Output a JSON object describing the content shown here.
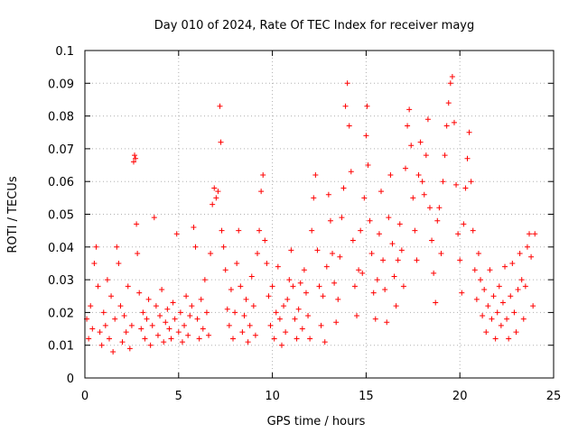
{
  "chart_data": {
    "type": "scatter",
    "title": "Day 010 of 2024, Rate Of TEC Index for receiver mayg",
    "xlabel": "GPS time / hours",
    "ylabel": "ROTI / TECUs",
    "xlim": [
      0,
      25
    ],
    "ylim": [
      0,
      0.1
    ],
    "x_ticks": [
      0,
      5,
      10,
      15,
      20,
      25
    ],
    "x_tick_labels": [
      "0",
      "5",
      "10",
      "15",
      "20",
      "25"
    ],
    "y_ticks": [
      0,
      0.01,
      0.02,
      0.03,
      0.04,
      0.05,
      0.06,
      0.07,
      0.08,
      0.09,
      0.1
    ],
    "y_tick_labels": [
      "0",
      "0.01",
      "0.02",
      "0.03",
      "0.04",
      "0.05",
      "0.06",
      "0.07",
      "0.08",
      "0.09",
      "0.1"
    ],
    "grid": true,
    "marker": "plus",
    "series": [
      {
        "name": "ROTI",
        "color": "#ff0000",
        "points": [
          [
            0.1,
            0.018
          ],
          [
            0.2,
            0.012
          ],
          [
            0.3,
            0.022
          ],
          [
            0.4,
            0.015
          ],
          [
            0.5,
            0.035
          ],
          [
            0.6,
            0.04
          ],
          [
            0.7,
            0.028
          ],
          [
            0.8,
            0.014
          ],
          [
            0.9,
            0.01
          ],
          [
            1.0,
            0.02
          ],
          [
            1.1,
            0.016
          ],
          [
            1.2,
            0.03
          ],
          [
            1.3,
            0.012
          ],
          [
            1.4,
            0.025
          ],
          [
            1.5,
            0.008
          ],
          [
            1.6,
            0.018
          ],
          [
            1.7,
            0.04
          ],
          [
            1.8,
            0.035
          ],
          [
            1.9,
            0.022
          ],
          [
            2.0,
            0.011
          ],
          [
            2.1,
            0.019
          ],
          [
            2.2,
            0.014
          ],
          [
            2.3,
            0.028
          ],
          [
            2.4,
            0.009
          ],
          [
            2.5,
            0.016
          ],
          [
            2.6,
            0.066
          ],
          [
            2.65,
            0.068
          ],
          [
            2.7,
            0.067
          ],
          [
            2.75,
            0.047
          ],
          [
            2.8,
            0.038
          ],
          [
            2.9,
            0.026
          ],
          [
            3.0,
            0.015
          ],
          [
            3.1,
            0.02
          ],
          [
            3.2,
            0.012
          ],
          [
            3.3,
            0.018
          ],
          [
            3.4,
            0.024
          ],
          [
            3.5,
            0.01
          ],
          [
            3.6,
            0.016
          ],
          [
            3.7,
            0.049
          ],
          [
            3.8,
            0.022
          ],
          [
            3.9,
            0.013
          ],
          [
            4.0,
            0.019
          ],
          [
            4.1,
            0.027
          ],
          [
            4.2,
            0.011
          ],
          [
            4.3,
            0.017
          ],
          [
            4.4,
            0.021
          ],
          [
            4.5,
            0.015
          ],
          [
            4.6,
            0.012
          ],
          [
            4.7,
            0.023
          ],
          [
            4.8,
            0.018
          ],
          [
            4.9,
            0.044
          ],
          [
            5.0,
            0.014
          ],
          [
            5.1,
            0.02
          ],
          [
            5.2,
            0.011
          ],
          [
            5.3,
            0.016
          ],
          [
            5.4,
            0.025
          ],
          [
            5.5,
            0.013
          ],
          [
            5.6,
            0.019
          ],
          [
            5.7,
            0.022
          ],
          [
            5.8,
            0.046
          ],
          [
            5.9,
            0.04
          ],
          [
            6.0,
            0.018
          ],
          [
            6.1,
            0.012
          ],
          [
            6.2,
            0.024
          ],
          [
            6.3,
            0.015
          ],
          [
            6.4,
            0.03
          ],
          [
            6.5,
            0.02
          ],
          [
            6.6,
            0.013
          ],
          [
            6.7,
            0.038
          ],
          [
            6.8,
            0.053
          ],
          [
            6.9,
            0.058
          ],
          [
            7.0,
            0.055
          ],
          [
            7.1,
            0.057
          ],
          [
            7.2,
            0.083
          ],
          [
            7.25,
            0.072
          ],
          [
            7.3,
            0.045
          ],
          [
            7.4,
            0.04
          ],
          [
            7.5,
            0.033
          ],
          [
            7.6,
            0.021
          ],
          [
            7.7,
            0.016
          ],
          [
            7.8,
            0.027
          ],
          [
            7.9,
            0.012
          ],
          [
            8.0,
            0.02
          ],
          [
            8.1,
            0.035
          ],
          [
            8.2,
            0.045
          ],
          [
            8.3,
            0.028
          ],
          [
            8.4,
            0.014
          ],
          [
            8.5,
            0.019
          ],
          [
            8.6,
            0.024
          ],
          [
            8.7,
            0.011
          ],
          [
            8.8,
            0.016
          ],
          [
            8.9,
            0.031
          ],
          [
            9.0,
            0.022
          ],
          [
            9.1,
            0.013
          ],
          [
            9.2,
            0.038
          ],
          [
            9.3,
            0.045
          ],
          [
            9.4,
            0.057
          ],
          [
            9.5,
            0.062
          ],
          [
            9.6,
            0.042
          ],
          [
            9.7,
            0.035
          ],
          [
            9.8,
            0.025
          ],
          [
            9.9,
            0.016
          ],
          [
            10.0,
            0.028
          ],
          [
            10.1,
            0.012
          ],
          [
            10.2,
            0.02
          ],
          [
            10.3,
            0.034
          ],
          [
            10.4,
            0.018
          ],
          [
            10.5,
            0.01
          ],
          [
            10.6,
            0.022
          ],
          [
            10.7,
            0.014
          ],
          [
            10.8,
            0.024
          ],
          [
            10.9,
            0.03
          ],
          [
            11.0,
            0.039
          ],
          [
            11.1,
            0.028
          ],
          [
            11.2,
            0.018
          ],
          [
            11.3,
            0.012
          ],
          [
            11.4,
            0.021
          ],
          [
            11.5,
            0.029
          ],
          [
            11.6,
            0.015
          ],
          [
            11.7,
            0.033
          ],
          [
            11.8,
            0.026
          ],
          [
            11.9,
            0.019
          ],
          [
            12.0,
            0.012
          ],
          [
            12.1,
            0.045
          ],
          [
            12.2,
            0.055
          ],
          [
            12.3,
            0.062
          ],
          [
            12.4,
            0.039
          ],
          [
            12.5,
            0.028
          ],
          [
            12.6,
            0.016
          ],
          [
            12.7,
            0.025
          ],
          [
            12.8,
            0.011
          ],
          [
            12.9,
            0.034
          ],
          [
            13.0,
            0.056
          ],
          [
            13.1,
            0.048
          ],
          [
            13.2,
            0.038
          ],
          [
            13.3,
            0.029
          ],
          [
            13.4,
            0.017
          ],
          [
            13.5,
            0.024
          ],
          [
            13.6,
            0.037
          ],
          [
            13.7,
            0.049
          ],
          [
            13.8,
            0.058
          ],
          [
            13.9,
            0.083
          ],
          [
            14.0,
            0.09
          ],
          [
            14.1,
            0.077
          ],
          [
            14.2,
            0.063
          ],
          [
            14.3,
            0.042
          ],
          [
            14.4,
            0.028
          ],
          [
            14.5,
            0.019
          ],
          [
            14.6,
            0.033
          ],
          [
            14.7,
            0.045
          ],
          [
            14.8,
            0.032
          ],
          [
            14.9,
            0.055
          ],
          [
            15.0,
            0.074
          ],
          [
            15.05,
            0.083
          ],
          [
            15.1,
            0.065
          ],
          [
            15.2,
            0.048
          ],
          [
            15.3,
            0.038
          ],
          [
            15.4,
            0.026
          ],
          [
            15.5,
            0.018
          ],
          [
            15.6,
            0.03
          ],
          [
            15.7,
            0.044
          ],
          [
            15.8,
            0.057
          ],
          [
            15.9,
            0.036
          ],
          [
            16.0,
            0.027
          ],
          [
            16.1,
            0.017
          ],
          [
            16.2,
            0.049
          ],
          [
            16.3,
            0.062
          ],
          [
            16.4,
            0.041
          ],
          [
            16.5,
            0.031
          ],
          [
            16.6,
            0.022
          ],
          [
            16.7,
            0.036
          ],
          [
            16.8,
            0.047
          ],
          [
            16.9,
            0.039
          ],
          [
            17.0,
            0.028
          ],
          [
            17.1,
            0.064
          ],
          [
            17.2,
            0.077
          ],
          [
            17.3,
            0.082
          ],
          [
            17.4,
            0.071
          ],
          [
            17.5,
            0.055
          ],
          [
            17.6,
            0.045
          ],
          [
            17.7,
            0.036
          ],
          [
            17.8,
            0.062
          ],
          [
            17.9,
            0.072
          ],
          [
            18.0,
            0.06
          ],
          [
            18.1,
            0.056
          ],
          [
            18.2,
            0.068
          ],
          [
            18.3,
            0.079
          ],
          [
            18.4,
            0.052
          ],
          [
            18.5,
            0.042
          ],
          [
            18.6,
            0.032
          ],
          [
            18.7,
            0.023
          ],
          [
            18.8,
            0.048
          ],
          [
            18.9,
            0.052
          ],
          [
            19.0,
            0.038
          ],
          [
            19.1,
            0.06
          ],
          [
            19.2,
            0.068
          ],
          [
            19.3,
            0.077
          ],
          [
            19.4,
            0.084
          ],
          [
            19.5,
            0.09
          ],
          [
            19.6,
            0.092
          ],
          [
            19.7,
            0.078
          ],
          [
            19.8,
            0.059
          ],
          [
            19.9,
            0.044
          ],
          [
            20.0,
            0.036
          ],
          [
            20.1,
            0.026
          ],
          [
            20.2,
            0.047
          ],
          [
            20.3,
            0.058
          ],
          [
            20.4,
            0.067
          ],
          [
            20.5,
            0.075
          ],
          [
            20.6,
            0.06
          ],
          [
            20.7,
            0.045
          ],
          [
            20.8,
            0.033
          ],
          [
            20.9,
            0.024
          ],
          [
            21.0,
            0.038
          ],
          [
            21.1,
            0.03
          ],
          [
            21.2,
            0.019
          ],
          [
            21.3,
            0.027
          ],
          [
            21.4,
            0.014
          ],
          [
            21.5,
            0.022
          ],
          [
            21.6,
            0.033
          ],
          [
            21.7,
            0.018
          ],
          [
            21.8,
            0.025
          ],
          [
            21.9,
            0.012
          ],
          [
            22.0,
            0.02
          ],
          [
            22.1,
            0.028
          ],
          [
            22.2,
            0.016
          ],
          [
            22.3,
            0.023
          ],
          [
            22.4,
            0.034
          ],
          [
            22.5,
            0.018
          ],
          [
            22.6,
            0.012
          ],
          [
            22.7,
            0.025
          ],
          [
            22.8,
            0.035
          ],
          [
            22.9,
            0.02
          ],
          [
            23.0,
            0.014
          ],
          [
            23.1,
            0.027
          ],
          [
            23.2,
            0.038
          ],
          [
            23.3,
            0.03
          ],
          [
            23.4,
            0.018
          ],
          [
            23.5,
            0.028
          ],
          [
            23.6,
            0.04
          ],
          [
            23.7,
            0.044
          ],
          [
            23.8,
            0.037
          ],
          [
            23.9,
            0.022
          ],
          [
            24.0,
            0.044
          ]
        ]
      }
    ]
  }
}
